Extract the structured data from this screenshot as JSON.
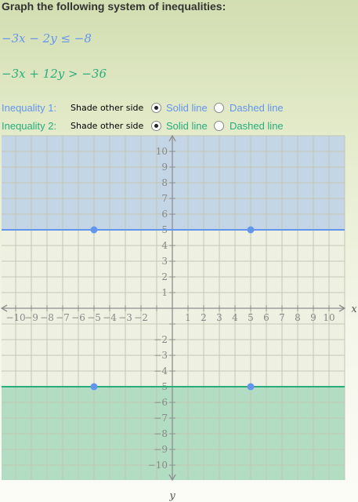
{
  "title": "Graph the following system of inequalities:",
  "inequalities": [
    {
      "expression": "−3x − 2y ≤ −8",
      "color": "#6495ed",
      "label": "Inequality 1:",
      "shade_button": "Shade other side",
      "solid_label": "Solid line",
      "dashed_label": "Dashed line",
      "line_style": "solid",
      "boundary_y": 5,
      "points": [
        [
          -5,
          5
        ],
        [
          5,
          5
        ]
      ],
      "shade": "above"
    },
    {
      "expression": "−3x + 12y > −36",
      "color": "#28ae7b",
      "label": "Inequality 2:",
      "shade_button": "Shade other side",
      "solid_label": "Solid line",
      "dashed_label": "Dashed line",
      "line_style": "solid",
      "boundary_y": -5,
      "points": [
        [
          -5,
          -5
        ],
        [
          5,
          -5
        ]
      ],
      "shade": "below"
    }
  ],
  "graph": {
    "x_axis_label": "x",
    "y_axis_label": "y",
    "xlim": [
      -11,
      11
    ],
    "ylim": [
      -11,
      11
    ],
    "x_ticks": [
      -10,
      -9,
      -8,
      -7,
      -6,
      -5,
      -4,
      -3,
      -2,
      1,
      2,
      3,
      4,
      5,
      6,
      7,
      8,
      9,
      10
    ],
    "y_ticks": [
      10,
      9,
      8,
      7,
      6,
      5,
      4,
      3,
      2,
      1,
      -2,
      -3,
      -4,
      -5,
      -6,
      -7,
      -8,
      -9,
      -10
    ],
    "grid": true
  }
}
